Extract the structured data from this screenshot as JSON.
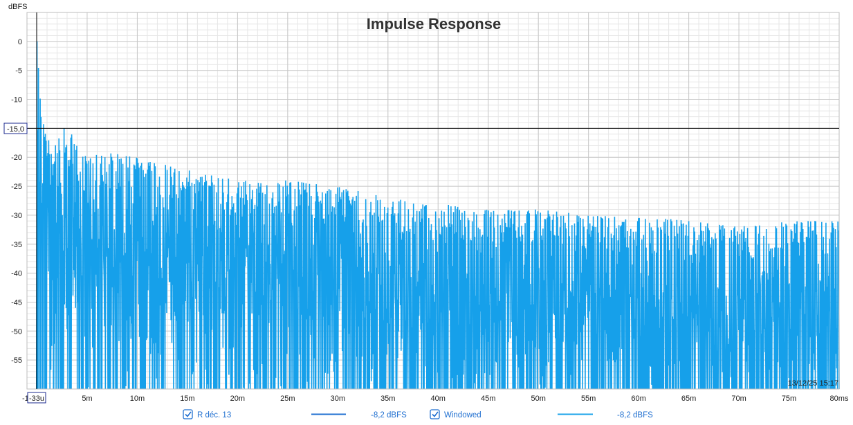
{
  "chart_data": {
    "type": "line",
    "title": "Impulse Response",
    "ylabel": "dBFS",
    "xlabel": "",
    "x_unit": "ms",
    "xlim": [
      -1,
      80
    ],
    "ylim": [
      -60,
      5
    ],
    "y_ticks": [
      {
        "value": 0,
        "label": "0"
      },
      {
        "value": -5,
        "label": "-5"
      },
      {
        "value": -10,
        "label": "-10"
      },
      {
        "value": -20,
        "label": "-20"
      },
      {
        "value": -25,
        "label": "-25"
      },
      {
        "value": -30,
        "label": "-30"
      },
      {
        "value": -35,
        "label": "-35"
      },
      {
        "value": -40,
        "label": "-40"
      },
      {
        "value": -45,
        "label": "-45"
      },
      {
        "value": -50,
        "label": "-50"
      },
      {
        "value": -55,
        "label": "-55"
      }
    ],
    "x_ticks": [
      {
        "value": -1,
        "label": "-1"
      },
      {
        "value": 5,
        "label": "5m"
      },
      {
        "value": 10,
        "label": "10m"
      },
      {
        "value": 15,
        "label": "15m"
      },
      {
        "value": 20,
        "label": "20m"
      },
      {
        "value": 25,
        "label": "25m"
      },
      {
        "value": 30,
        "label": "30m"
      },
      {
        "value": 35,
        "label": "35m"
      },
      {
        "value": 40,
        "label": "40m"
      },
      {
        "value": 45,
        "label": "45m"
      },
      {
        "value": 50,
        "label": "50m"
      },
      {
        "value": 55,
        "label": "55m"
      },
      {
        "value": 60,
        "label": "60m"
      },
      {
        "value": 65,
        "label": "65m"
      },
      {
        "value": 70,
        "label": "70m"
      },
      {
        "value": 75,
        "label": "75m"
      },
      {
        "value": 80,
        "label": "80ms"
      }
    ],
    "grid": true,
    "cursor": {
      "x": -0.033,
      "x_label": "-33u",
      "y": -15.0,
      "y_label": "-15,0"
    },
    "timestamp": "13/12/25 15:17",
    "envelope": {
      "x": [
        0,
        0.5,
        1,
        2,
        3,
        4,
        5,
        7,
        10,
        15,
        20,
        25,
        30,
        35,
        40,
        45,
        50,
        55,
        60,
        65,
        70,
        75,
        80
      ],
      "y": [
        0,
        -12,
        -17,
        -16,
        -14,
        -18,
        -19,
        -19,
        -20,
        -22,
        -24,
        -24,
        -25,
        -27,
        -28,
        -29,
        -29,
        -30,
        -30,
        -31,
        -32,
        -31,
        -31
      ]
    },
    "series": [
      {
        "name": "R déc. 13",
        "color": "#1f6fd0",
        "level": "-8,2 dBFS"
      },
      {
        "name": "Windowed",
        "color": "#1aa3ea",
        "level": "-8,2 dBFS"
      }
    ]
  },
  "legend": {
    "items": [
      {
        "name": "R déc. 13",
        "level": "-8,2 dBFS",
        "checked": true
      },
      {
        "name": "Windowed",
        "level": "-8,2 dBFS",
        "checked": true
      }
    ]
  },
  "colors": {
    "trace": "#16a0ea",
    "grid_major": "#c8c8c8",
    "grid_minor": "#e6e6e6",
    "legend_line_1": "#1f6fd0",
    "legend_line_2": "#1aa3ea",
    "legend_text": "#1f6fd0"
  }
}
